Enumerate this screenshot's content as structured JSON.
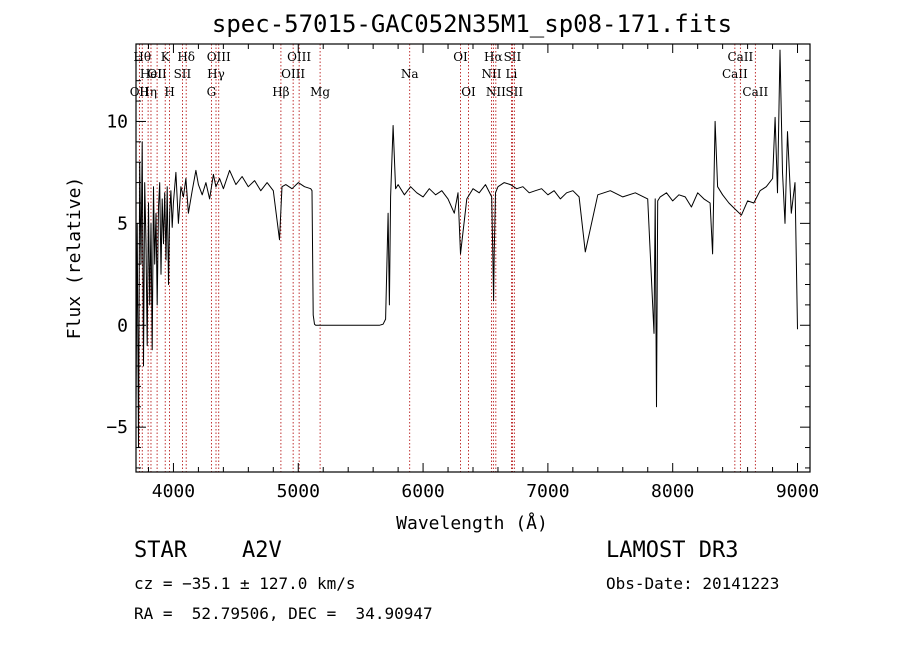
{
  "chart_data": {
    "type": "line",
    "title": "spec-57015-GAC052N35M1_sp08-171.fits",
    "xlabel": "Wavelength (Å)",
    "ylabel": "Flux (relative)",
    "xlim": [
      3700,
      9100
    ],
    "ylim": [
      -7.2,
      13.8
    ],
    "xticks": [
      4000,
      5000,
      6000,
      7000,
      8000,
      9000
    ],
    "xtick_labels": [
      "4000",
      "5000",
      "6000",
      "7000",
      "8000",
      "9000"
    ],
    "yticks": [
      -5,
      0,
      5,
      10
    ],
    "ytick_labels": [
      "−5",
      "0",
      "5",
      "10"
    ],
    "spectral_lines": [
      {
        "wavelength": 3727,
        "label": "OII",
        "row": 3
      },
      {
        "wavelength": 3750,
        "label": "Hθ",
        "row": 1
      },
      {
        "wavelength": 3797,
        "label": "Hη",
        "row": 3
      },
      {
        "wavelength": 3820,
        "label": "HeI",
        "row": 2
      },
      {
        "wavelength": 3869,
        "label": "OII",
        "row": 2
      },
      {
        "wavelength": 3934,
        "label": "K",
        "row": 1
      },
      {
        "wavelength": 3969,
        "label": "H",
        "row": 3
      },
      {
        "wavelength": 4072,
        "label": "SII",
        "row": 2
      },
      {
        "wavelength": 4102,
        "label": "Hδ",
        "row": 1
      },
      {
        "wavelength": 4304,
        "label": "G",
        "row": 3
      },
      {
        "wavelength": 4341,
        "label": "Hγ",
        "row": 2
      },
      {
        "wavelength": 4363,
        "label": "OIII",
        "row": 1
      },
      {
        "wavelength": 4861,
        "label": "Hβ",
        "row": 3
      },
      {
        "wavelength": 4959,
        "label": "OIII",
        "row": 2
      },
      {
        "wavelength": 5007,
        "label": "OIII",
        "row": 1
      },
      {
        "wavelength": 5175,
        "label": "Mg",
        "row": 3
      },
      {
        "wavelength": 5893,
        "label": "Na",
        "row": 2
      },
      {
        "wavelength": 6300,
        "label": "OI",
        "row": 1
      },
      {
        "wavelength": 6364,
        "label": "OI",
        "row": 3
      },
      {
        "wavelength": 6548,
        "label": "NII",
        "row": 2
      },
      {
        "wavelength": 6563,
        "label": "Hα",
        "row": 1
      },
      {
        "wavelength": 6583,
        "label": "NII",
        "row": 3
      },
      {
        "wavelength": 6708,
        "label": "Li",
        "row": 2
      },
      {
        "wavelength": 6716,
        "label": "SII",
        "row": 1
      },
      {
        "wavelength": 6731,
        "label": "SII",
        "row": 3
      },
      {
        "wavelength": 8498,
        "label": "CaII",
        "row": 2
      },
      {
        "wavelength": 8542,
        "label": "CaII",
        "row": 1
      },
      {
        "wavelength": 8662,
        "label": "CaII",
        "row": 3
      }
    ],
    "series": [
      {
        "name": "flux",
        "x": [
          3700,
          3710,
          3720,
          3730,
          3740,
          3750,
          3760,
          3770,
          3780,
          3790,
          3800,
          3810,
          3820,
          3830,
          3840,
          3850,
          3860,
          3870,
          3880,
          3890,
          3900,
          3910,
          3920,
          3930,
          3940,
          3950,
          3960,
          3970,
          3980,
          3990,
          4000,
          4020,
          4040,
          4060,
          4080,
          4100,
          4120,
          4150,
          4180,
          4200,
          4230,
          4260,
          4290,
          4320,
          4340,
          4370,
          4400,
          4450,
          4500,
          4550,
          4600,
          4650,
          4700,
          4750,
          4800,
          4850,
          4870,
          4900,
          4950,
          5000,
          5050,
          5100,
          5110,
          5120,
          5130,
          5140,
          5200,
          5300,
          5400,
          5500,
          5600,
          5650,
          5680,
          5700,
          5710,
          5720,
          5730,
          5740,
          5760,
          5780,
          5800,
          5850,
          5900,
          5950,
          6000,
          6050,
          6100,
          6150,
          6200,
          6250,
          6280,
          6300,
          6350,
          6400,
          6450,
          6500,
          6550,
          6560,
          6565,
          6570,
          6580,
          6600,
          6650,
          6700,
          6750,
          6800,
          6850,
          6900,
          6950,
          7000,
          7050,
          7100,
          7150,
          7200,
          7250,
          7300,
          7400,
          7500,
          7600,
          7700,
          7800,
          7850,
          7860,
          7870,
          7880,
          7900,
          7950,
          8000,
          8050,
          8100,
          8150,
          8200,
          8250,
          8300,
          8320,
          8340,
          8360,
          8400,
          8450,
          8500,
          8550,
          8600,
          8650,
          8700,
          8750,
          8800,
          8820,
          8840,
          8860,
          8880,
          8900,
          8920,
          8950,
          8980,
          9000
        ],
        "values": [
          -4,
          5,
          -6,
          8,
          3,
          9,
          -2,
          7,
          4,
          -1,
          6,
          1,
          5,
          -1.2,
          6.8,
          3,
          5.5,
          1,
          5.8,
          7,
          2.5,
          6.2,
          4,
          6.5,
          3.2,
          6.8,
          2,
          5.5,
          6.6,
          4.8,
          6,
          7.5,
          5,
          6.8,
          6.3,
          7.2,
          5.5,
          6.6,
          7.6,
          6.9,
          6.4,
          7.0,
          6.2,
          7.4,
          6.8,
          7.2,
          6.7,
          7.6,
          6.9,
          7.3,
          6.8,
          7.1,
          6.6,
          7.0,
          6.6,
          4.2,
          6.8,
          6.9,
          6.7,
          7.0,
          6.8,
          6.7,
          6.6,
          0.5,
          0.05,
          0.0,
          0.0,
          0.0,
          0.0,
          0.0,
          0.0,
          0.0,
          0.05,
          0.3,
          3.0,
          5.5,
          1.0,
          6.3,
          9.8,
          6.7,
          6.9,
          6.4,
          6.8,
          6.5,
          6.3,
          6.7,
          6.4,
          6.6,
          6.2,
          5.5,
          6.5,
          3.5,
          6.2,
          6.7,
          6.5,
          6.9,
          6.3,
          3.0,
          1.2,
          3.5,
          6.5,
          6.8,
          7.0,
          6.9,
          6.7,
          6.8,
          6.5,
          6.6,
          6.7,
          6.4,
          6.6,
          6.2,
          6.5,
          6.6,
          6.3,
          3.6,
          6.4,
          6.6,
          6.3,
          6.5,
          6.2,
          -0.4,
          6.2,
          -4,
          6.1,
          6.3,
          6.5,
          6.1,
          6.4,
          6.3,
          5.8,
          6.5,
          6.2,
          6.0,
          3.5,
          10.0,
          6.8,
          6.4,
          6.0,
          5.7,
          5.4,
          6.1,
          6.0,
          6.6,
          6.8,
          7.2,
          10.2,
          6.5,
          13.5,
          7.5,
          5.0,
          9.5,
          5.5,
          7.0,
          -0.2
        ]
      }
    ]
  },
  "info": {
    "object_class": "STAR",
    "subclass": "A2V",
    "survey": "LAMOST DR3",
    "redshift_text": "cz = −35.1 ± 127.0 km/s",
    "obs_date_text": "Obs-Date: 20141223",
    "coords_text": "RA =  52.79506, DEC =  34.90947"
  }
}
